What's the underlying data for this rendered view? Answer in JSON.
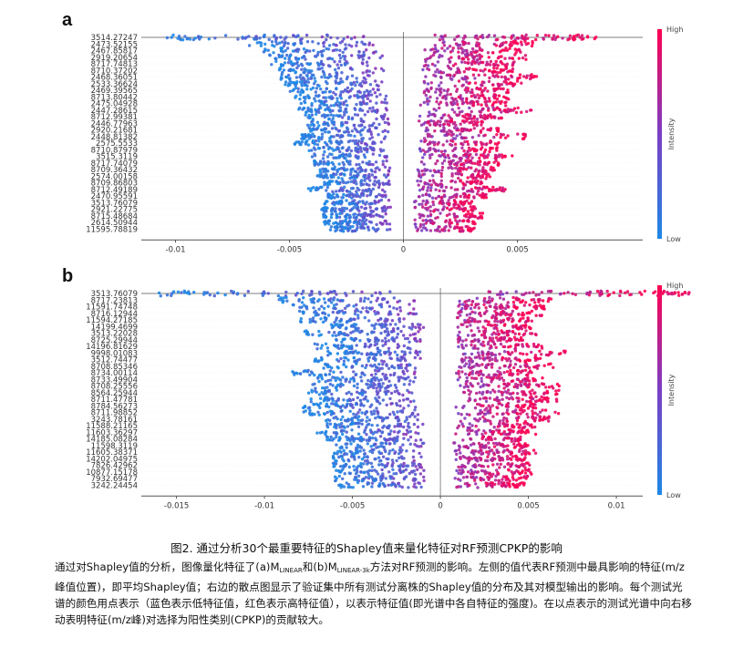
{
  "figure": {
    "caption": "图2. 通过分析30个最重要特征的Shapley值来量化特征对RF预测CPKP的影响",
    "body_text": {
      "seg1": "通过对Shapley值的分析，图像量化特征了(a)M",
      "sub1": "LINEAR",
      "seg2": "和(b)M",
      "sub2": "LINEAR-3k",
      "seg3": "方法对RF预测的影响。左侧的值代表RF预测中最具影响的特征(m/z峰值位置)，即平均Shapley值；右边的散点图显示了验证集中所有测试分离株的Shapley值的分布及其对模型输出的影响。每个测试光谱的颜色用点表示（蓝色表示低特征值，红色表示高特征值），以表示特征值(即光谱中各自特征的强度)。在以点表示的测试光谱中向右移动表明特征(m/z峰)对选择为阳性类别(CPKP)的贡献较大。"
    },
    "colors": {
      "low": "#1E88E5",
      "mid": "#7B3FC4",
      "high": "#FF0052",
      "axis": "#555555",
      "grid": "#eeeeee"
    }
  },
  "chart_data": [
    {
      "panel_letter": "a",
      "type": "scatter",
      "xlim": [
        -0.0115,
        0.0105
      ],
      "x_ticks": [
        "-0.01",
        "-0.005",
        "0",
        "0.005"
      ],
      "x_tick_values": [
        -0.01,
        -0.005,
        0,
        0.005
      ],
      "features": [
        "3514.27247",
        "2473.52155",
        "2467.85817",
        "2919.20654",
        "8717.74813",
        "8710.37202",
        "2468.36051",
        "2533.36624",
        "2469.39565",
        "8713.80442",
        "2475.04928",
        "2447.28615",
        "8712.99381",
        "2446.77963",
        "2920.21681",
        "2448.81382",
        "2575.5533",
        "8710.87979",
        "3515.3119",
        "8717.74079",
        "8709.36432",
        "2574.00158",
        "8709.86803",
        "8712.49189",
        "2470.95591",
        "3513.76079",
        "2921.22775",
        "8715.48684",
        "2614.50944",
        "11595.78819"
      ],
      "spreads": [
        [
          -0.0105,
          0.0085
        ],
        [
          -0.0068,
          0.0058
        ],
        [
          -0.0063,
          0.0052
        ],
        [
          -0.006,
          0.0055
        ],
        [
          -0.0058,
          0.005
        ],
        [
          -0.0055,
          0.0048
        ],
        [
          -0.0055,
          0.006
        ],
        [
          -0.0052,
          0.0052
        ],
        [
          -0.005,
          0.0046
        ],
        [
          -0.0048,
          0.0047
        ],
        [
          -0.0046,
          0.0045
        ],
        [
          -0.0046,
          0.0058
        ],
        [
          -0.0043,
          0.0045
        ],
        [
          -0.0042,
          0.0035
        ],
        [
          -0.0042,
          0.0042
        ],
        [
          -0.0045,
          0.0055
        ],
        [
          -0.0048,
          0.0042
        ],
        [
          -0.0042,
          0.0042
        ],
        [
          -0.004,
          0.0048
        ],
        [
          -0.004,
          0.0042
        ],
        [
          -0.0037,
          0.004
        ],
        [
          -0.0038,
          0.0038
        ],
        [
          -0.0035,
          0.0035
        ],
        [
          -0.0042,
          0.0045
        ],
        [
          -0.0035,
          0.0038
        ],
        [
          -0.0035,
          0.0032
        ],
        [
          -0.0036,
          0.0032
        ],
        [
          -0.0036,
          0.0035
        ],
        [
          -0.0035,
          0.0032
        ],
        [
          -0.0033,
          0.0032
        ]
      ],
      "colorbar": {
        "high": "High",
        "low": "Low",
        "label": "Intensity"
      }
    },
    {
      "panel_letter": "b",
      "type": "scatter",
      "xlim": [
        -0.017,
        0.0115
      ],
      "x_ticks": [
        "-0.015",
        "-0.01",
        "-0.005",
        "0",
        "0.005",
        "0.01"
      ],
      "x_tick_values": [
        -0.015,
        -0.01,
        -0.005,
        0,
        0.005,
        0.01
      ],
      "features": [
        "3513.76079",
        "8717.23813",
        "11591.74748",
        "8716.12944",
        "11594.27185",
        "14199.4699",
        "3513.22028",
        "8725.29944",
        "14196.81629",
        "9998.01083",
        "3512.74477",
        "8708.85346",
        "8734.00114",
        "8733.49904",
        "8708.25556",
        "8564.25944",
        "8711.47781",
        "8784.56273",
        "8711.98852",
        "3243.78161",
        "11588.21165",
        "11603.36297",
        "14185.08284",
        "11598.3119",
        "11605.38371",
        "14202.04975",
        "7826.42962",
        "10877.15178",
        "7932.69477",
        "3242.24454"
      ],
      "spreads": [
        [
          -0.016,
          0.0142
        ],
        [
          -0.0092,
          0.0065
        ],
        [
          -0.0085,
          0.0062
        ],
        [
          -0.0082,
          0.0058
        ],
        [
          -0.008,
          0.0052
        ],
        [
          -0.0062,
          0.0052
        ],
        [
          -0.0078,
          0.0055
        ],
        [
          -0.0062,
          0.0048
        ],
        [
          -0.0072,
          0.0058
        ],
        [
          -0.0065,
          0.0072
        ],
        [
          -0.0072,
          0.0058
        ],
        [
          -0.0068,
          0.0068
        ],
        [
          -0.0085,
          0.0052
        ],
        [
          -0.0072,
          0.006
        ],
        [
          -0.0075,
          0.0068
        ],
        [
          -0.0076,
          0.0068
        ],
        [
          -0.0075,
          0.0068
        ],
        [
          -0.0078,
          0.0055
        ],
        [
          -0.0078,
          0.0068
        ],
        [
          -0.0065,
          0.0062
        ],
        [
          -0.0065,
          0.0055
        ],
        [
          -0.0072,
          0.0055
        ],
        [
          -0.0065,
          0.005
        ],
        [
          -0.0062,
          0.005
        ],
        [
          -0.0062,
          0.0055
        ],
        [
          -0.0062,
          0.005
        ],
        [
          -0.0062,
          0.0052
        ],
        [
          -0.006,
          0.0052
        ],
        [
          -0.006,
          0.005
        ],
        [
          -0.0058,
          0.0048
        ]
      ],
      "colorbar": {
        "high": "High",
        "low": "Low",
        "label": "Intensity"
      }
    }
  ]
}
